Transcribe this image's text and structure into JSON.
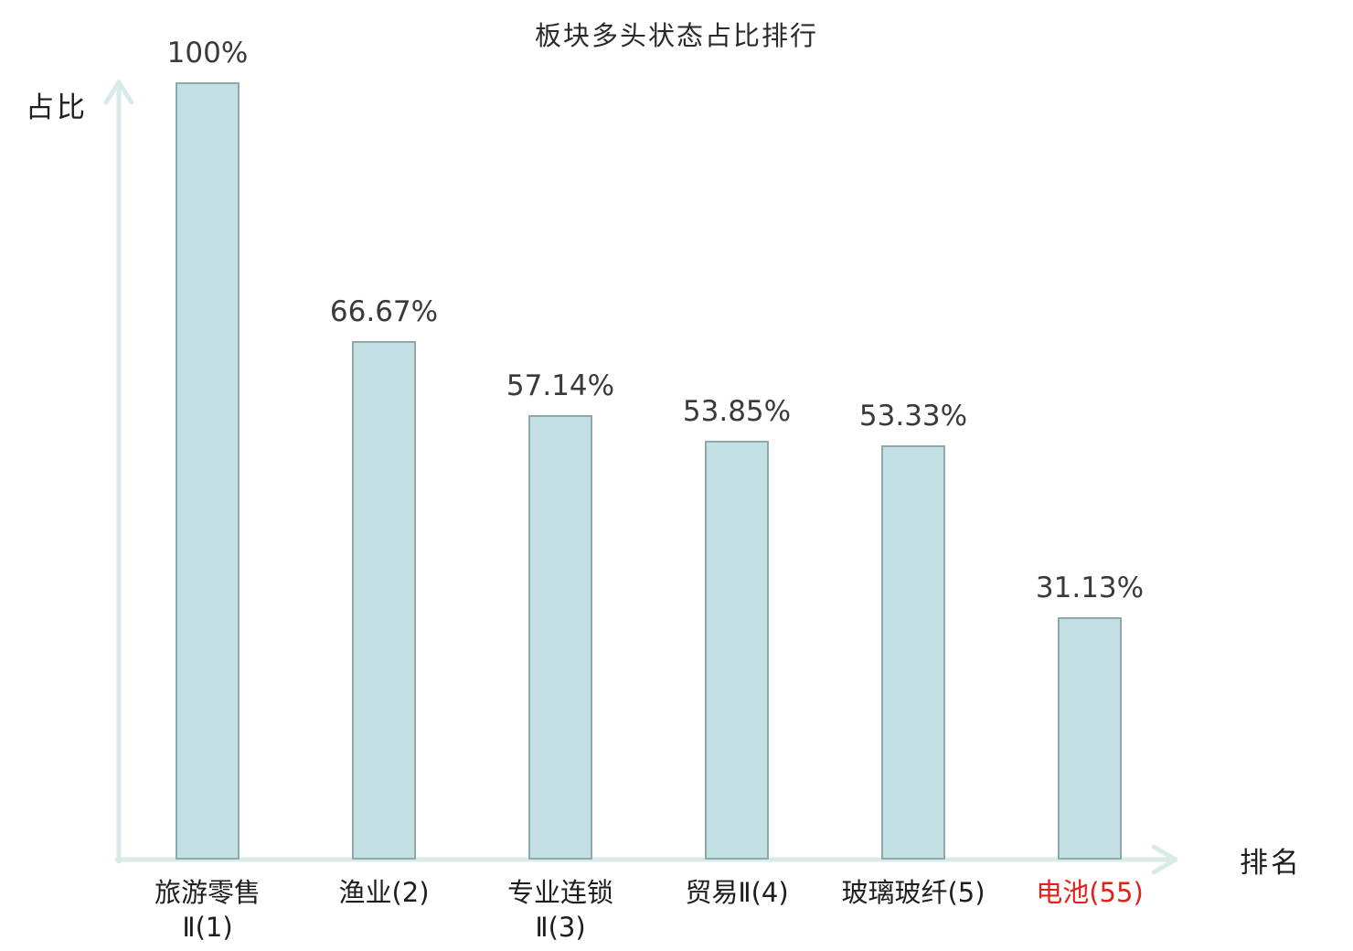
{
  "title": "板块多头状态占比排行",
  "colors": {
    "bar_fill": "#c3e1e4",
    "bar_border": "#8ea9ab",
    "axis": "#d9ebe8",
    "label_text": "#3a3a3a",
    "highlight_red": "#e0221a"
  },
  "chart_data": {
    "type": "bar",
    "title": "板块多头状态占比排行",
    "xlabel": "排名",
    "ylabel": "占比",
    "ylim": [
      0,
      100
    ],
    "grid": false,
    "legend": false,
    "categories": [
      "旅游零售Ⅱ(1)",
      "渔业(2)",
      "专业连锁Ⅱ(3)",
      "贸易Ⅱ(4)",
      "玻璃玻纤(5)",
      "电池(55)"
    ],
    "category_label_lines": [
      [
        "旅游零售",
        "Ⅱ(1)"
      ],
      [
        "渔业(2)"
      ],
      [
        "专业连锁",
        "Ⅱ(3)"
      ],
      [
        "贸易Ⅱ(4)"
      ],
      [
        "玻璃玻纤(5)"
      ],
      [
        "电池(55)"
      ]
    ],
    "values": [
      100,
      66.67,
      57.14,
      53.85,
      53.33,
      31.13
    ],
    "value_labels": [
      "100%",
      "66.67%",
      "57.14%",
      "53.85%",
      "53.33%",
      "31.13%"
    ],
    "highlighted_category_index": 5
  }
}
